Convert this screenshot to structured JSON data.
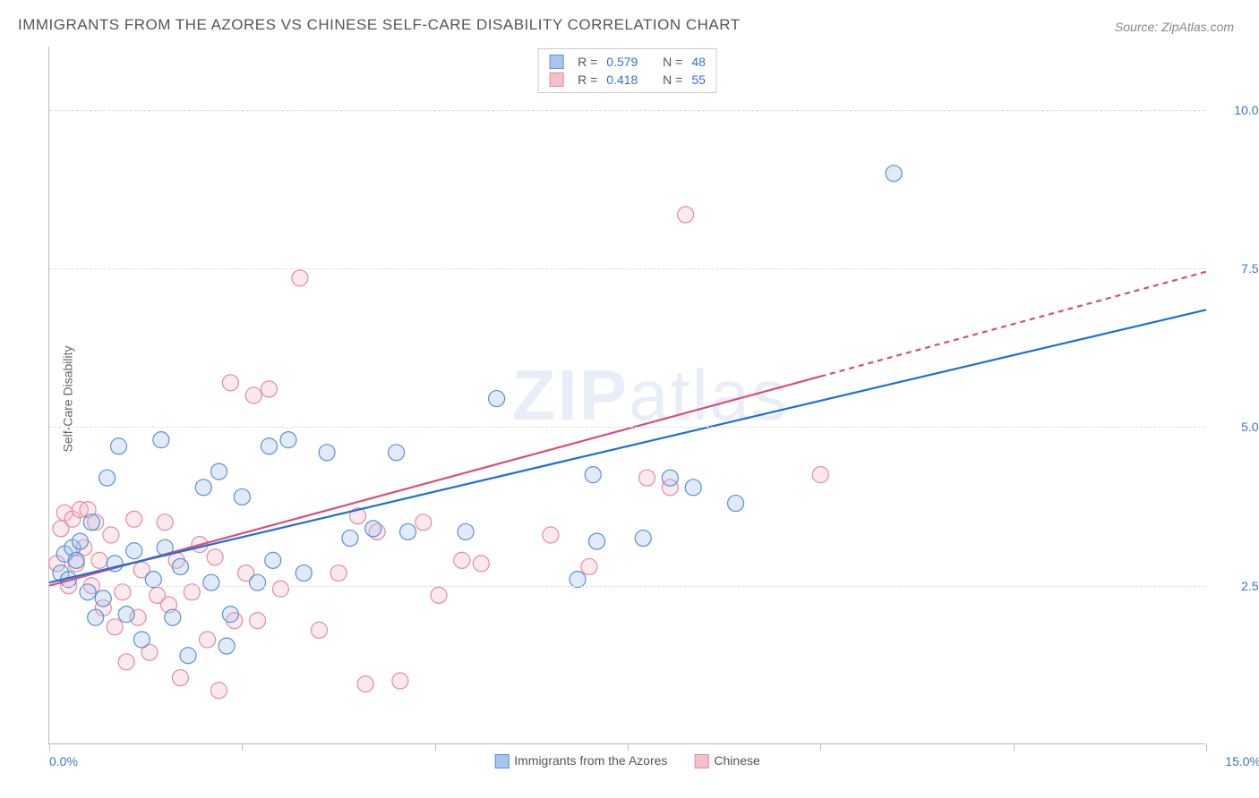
{
  "title": "IMMIGRANTS FROM THE AZORES VS CHINESE SELF-CARE DISABILITY CORRELATION CHART",
  "source_label": "Source: ",
  "source_name": "ZipAtlas.com",
  "ylabel": "Self-Care Disability",
  "watermark": {
    "left": "ZIP",
    "right": "atlas"
  },
  "chart": {
    "type": "scatter",
    "x_range": [
      0,
      15
    ],
    "y_range": [
      0,
      11
    ],
    "x_min_label": "0.0%",
    "x_max_label": "15.0%",
    "y_ticks": [
      2.5,
      5.0,
      7.5,
      10.0
    ],
    "y_tick_labels": [
      "2.5%",
      "5.0%",
      "7.5%",
      "10.0%"
    ],
    "x_tick_positions": [
      0,
      2.5,
      5.0,
      7.5,
      10.0,
      12.5,
      15.0
    ],
    "background_color": "#ffffff",
    "grid_color": "#dddddd",
    "grid_dash": "4,4",
    "axis_color": "#bbbbbb",
    "marker_radius": 9,
    "marker_stroke_width": 1.2,
    "marker_fill_opacity": 0.35,
    "trend_line_width": 2.2,
    "series": {
      "azores": {
        "label": "Immigrants from the Azores",
        "color_fill": "#a8c6ec",
        "color_stroke": "#5b8fd6",
        "R_label": "R =",
        "R": "0.579",
        "N_label": "N =",
        "N": "48",
        "trend_color": "#1f6fd6",
        "trend": {
          "x1": 0,
          "y1": 2.55,
          "x2": 15,
          "y2": 6.85
        },
        "points": [
          [
            0.15,
            2.7
          ],
          [
            0.2,
            3.0
          ],
          [
            0.25,
            2.6
          ],
          [
            0.3,
            3.1
          ],
          [
            0.35,
            2.9
          ],
          [
            0.4,
            3.2
          ],
          [
            0.5,
            2.4
          ],
          [
            0.55,
            3.5
          ],
          [
            0.6,
            2.0
          ],
          [
            0.7,
            2.3
          ],
          [
            0.75,
            4.2
          ],
          [
            0.85,
            2.85
          ],
          [
            0.9,
            4.7
          ],
          [
            1.0,
            2.05
          ],
          [
            1.1,
            3.05
          ],
          [
            1.2,
            1.65
          ],
          [
            1.35,
            2.6
          ],
          [
            1.45,
            4.8
          ],
          [
            1.5,
            3.1
          ],
          [
            1.6,
            2.0
          ],
          [
            1.7,
            2.8
          ],
          [
            1.8,
            1.4
          ],
          [
            2.0,
            4.05
          ],
          [
            2.1,
            2.55
          ],
          [
            2.2,
            4.3
          ],
          [
            2.35,
            2.05
          ],
          [
            2.5,
            3.9
          ],
          [
            2.7,
            2.55
          ],
          [
            2.85,
            4.7
          ],
          [
            2.9,
            2.9
          ],
          [
            3.1,
            4.8
          ],
          [
            3.3,
            2.7
          ],
          [
            3.6,
            4.6
          ],
          [
            3.9,
            3.25
          ],
          [
            4.2,
            3.4
          ],
          [
            4.5,
            4.6
          ],
          [
            4.65,
            3.35
          ],
          [
            5.4,
            3.35
          ],
          [
            5.8,
            5.45
          ],
          [
            6.85,
            2.6
          ],
          [
            7.1,
            3.2
          ],
          [
            7.7,
            3.25
          ],
          [
            8.05,
            4.2
          ],
          [
            8.35,
            4.05
          ],
          [
            8.9,
            3.8
          ],
          [
            10.95,
            9.0
          ],
          [
            7.05,
            4.25
          ],
          [
            2.3,
            1.55
          ]
        ]
      },
      "chinese": {
        "label": "Chinese",
        "color_fill": "#f4c0cd",
        "color_stroke": "#e28ba3",
        "R_label": "R =",
        "R": "0.418",
        "N_label": "N =",
        "N": "55",
        "trend_color": "#d94d7a",
        "trend_solid": {
          "x1": 0,
          "y1": 2.5,
          "x2": 10.0,
          "y2": 5.8
        },
        "trend_dashed": {
          "x1": 10.0,
          "y1": 5.8,
          "x2": 15,
          "y2": 7.45
        },
        "dash_pattern": "6,5",
        "points": [
          [
            0.1,
            2.85
          ],
          [
            0.15,
            3.4
          ],
          [
            0.2,
            3.65
          ],
          [
            0.25,
            2.5
          ],
          [
            0.3,
            3.55
          ],
          [
            0.35,
            2.85
          ],
          [
            0.4,
            3.7
          ],
          [
            0.45,
            3.1
          ],
          [
            0.5,
            3.7
          ],
          [
            0.55,
            2.5
          ],
          [
            0.6,
            3.5
          ],
          [
            0.65,
            2.9
          ],
          [
            0.7,
            2.15
          ],
          [
            0.8,
            3.3
          ],
          [
            0.85,
            1.85
          ],
          [
            0.95,
            2.4
          ],
          [
            1.0,
            1.3
          ],
          [
            1.1,
            3.55
          ],
          [
            1.15,
            2.0
          ],
          [
            1.2,
            2.75
          ],
          [
            1.3,
            1.45
          ],
          [
            1.4,
            2.35
          ],
          [
            1.5,
            3.5
          ],
          [
            1.55,
            2.2
          ],
          [
            1.65,
            2.9
          ],
          [
            1.7,
            1.05
          ],
          [
            1.85,
            2.4
          ],
          [
            1.95,
            3.15
          ],
          [
            2.05,
            1.65
          ],
          [
            2.15,
            2.95
          ],
          [
            2.2,
            0.85
          ],
          [
            2.35,
            5.7
          ],
          [
            2.4,
            1.95
          ],
          [
            2.55,
            2.7
          ],
          [
            2.65,
            5.5
          ],
          [
            2.7,
            1.95
          ],
          [
            2.85,
            5.6
          ],
          [
            3.0,
            2.45
          ],
          [
            3.25,
            7.35
          ],
          [
            3.5,
            1.8
          ],
          [
            3.75,
            2.7
          ],
          [
            4.0,
            3.6
          ],
          [
            4.25,
            3.35
          ],
          [
            4.55,
            1.0
          ],
          [
            4.85,
            3.5
          ],
          [
            5.05,
            2.35
          ],
          [
            5.35,
            2.9
          ],
          [
            5.6,
            2.85
          ],
          [
            6.5,
            3.3
          ],
          [
            7.0,
            2.8
          ],
          [
            7.75,
            4.2
          ],
          [
            8.05,
            4.05
          ],
          [
            8.25,
            8.35
          ],
          [
            10.0,
            4.25
          ],
          [
            4.1,
            0.95
          ]
        ]
      }
    }
  }
}
